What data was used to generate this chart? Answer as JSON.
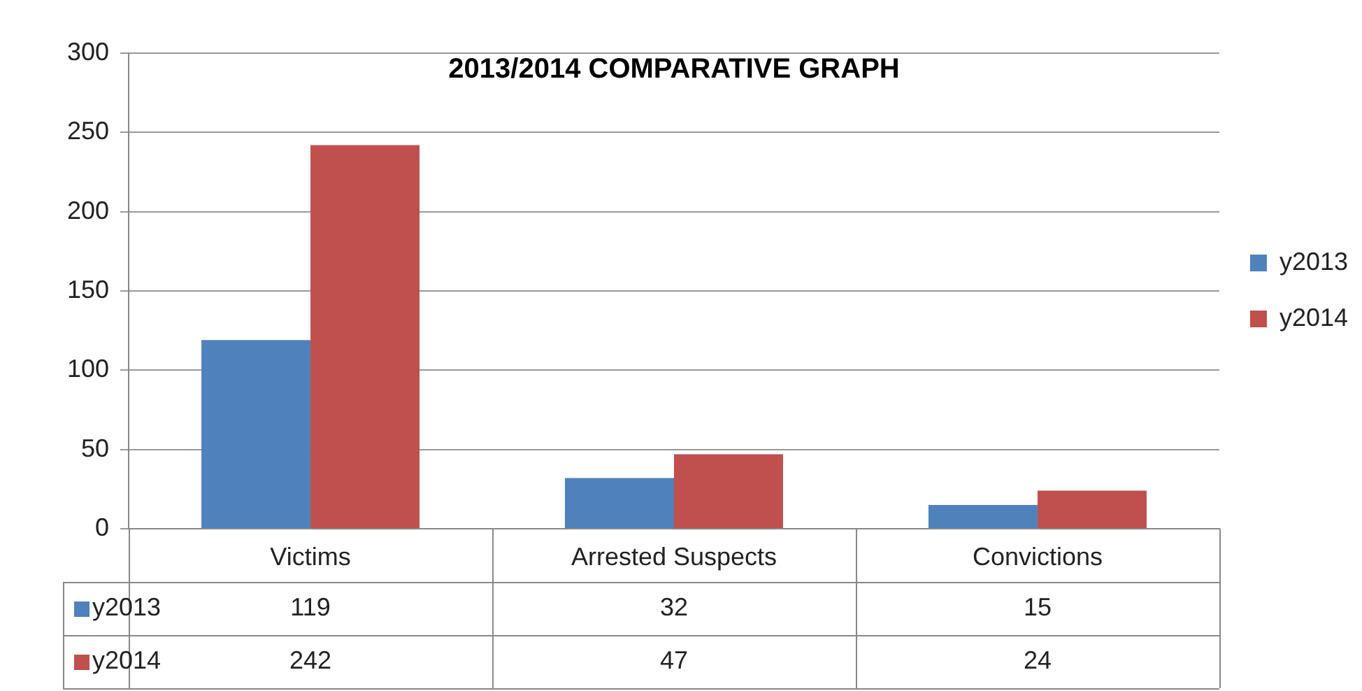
{
  "chart_data": {
    "type": "bar",
    "title": "2013/2014 COMPARATIVE GRAPH",
    "categories": [
      "Victims",
      "Arrested Suspects",
      "Convictions"
    ],
    "series": [
      {
        "name": "y2013",
        "color": "#4f81bd",
        "values": [
          119,
          32,
          15
        ]
      },
      {
        "name": "y2014",
        "color": "#c0504d",
        "values": [
          242,
          47,
          24
        ]
      }
    ],
    "ylim": [
      0,
      300
    ],
    "yticks": [
      0,
      50,
      100,
      150,
      200,
      250,
      300
    ],
    "grid": "y",
    "legend": "right",
    "data_labels": true
  }
}
